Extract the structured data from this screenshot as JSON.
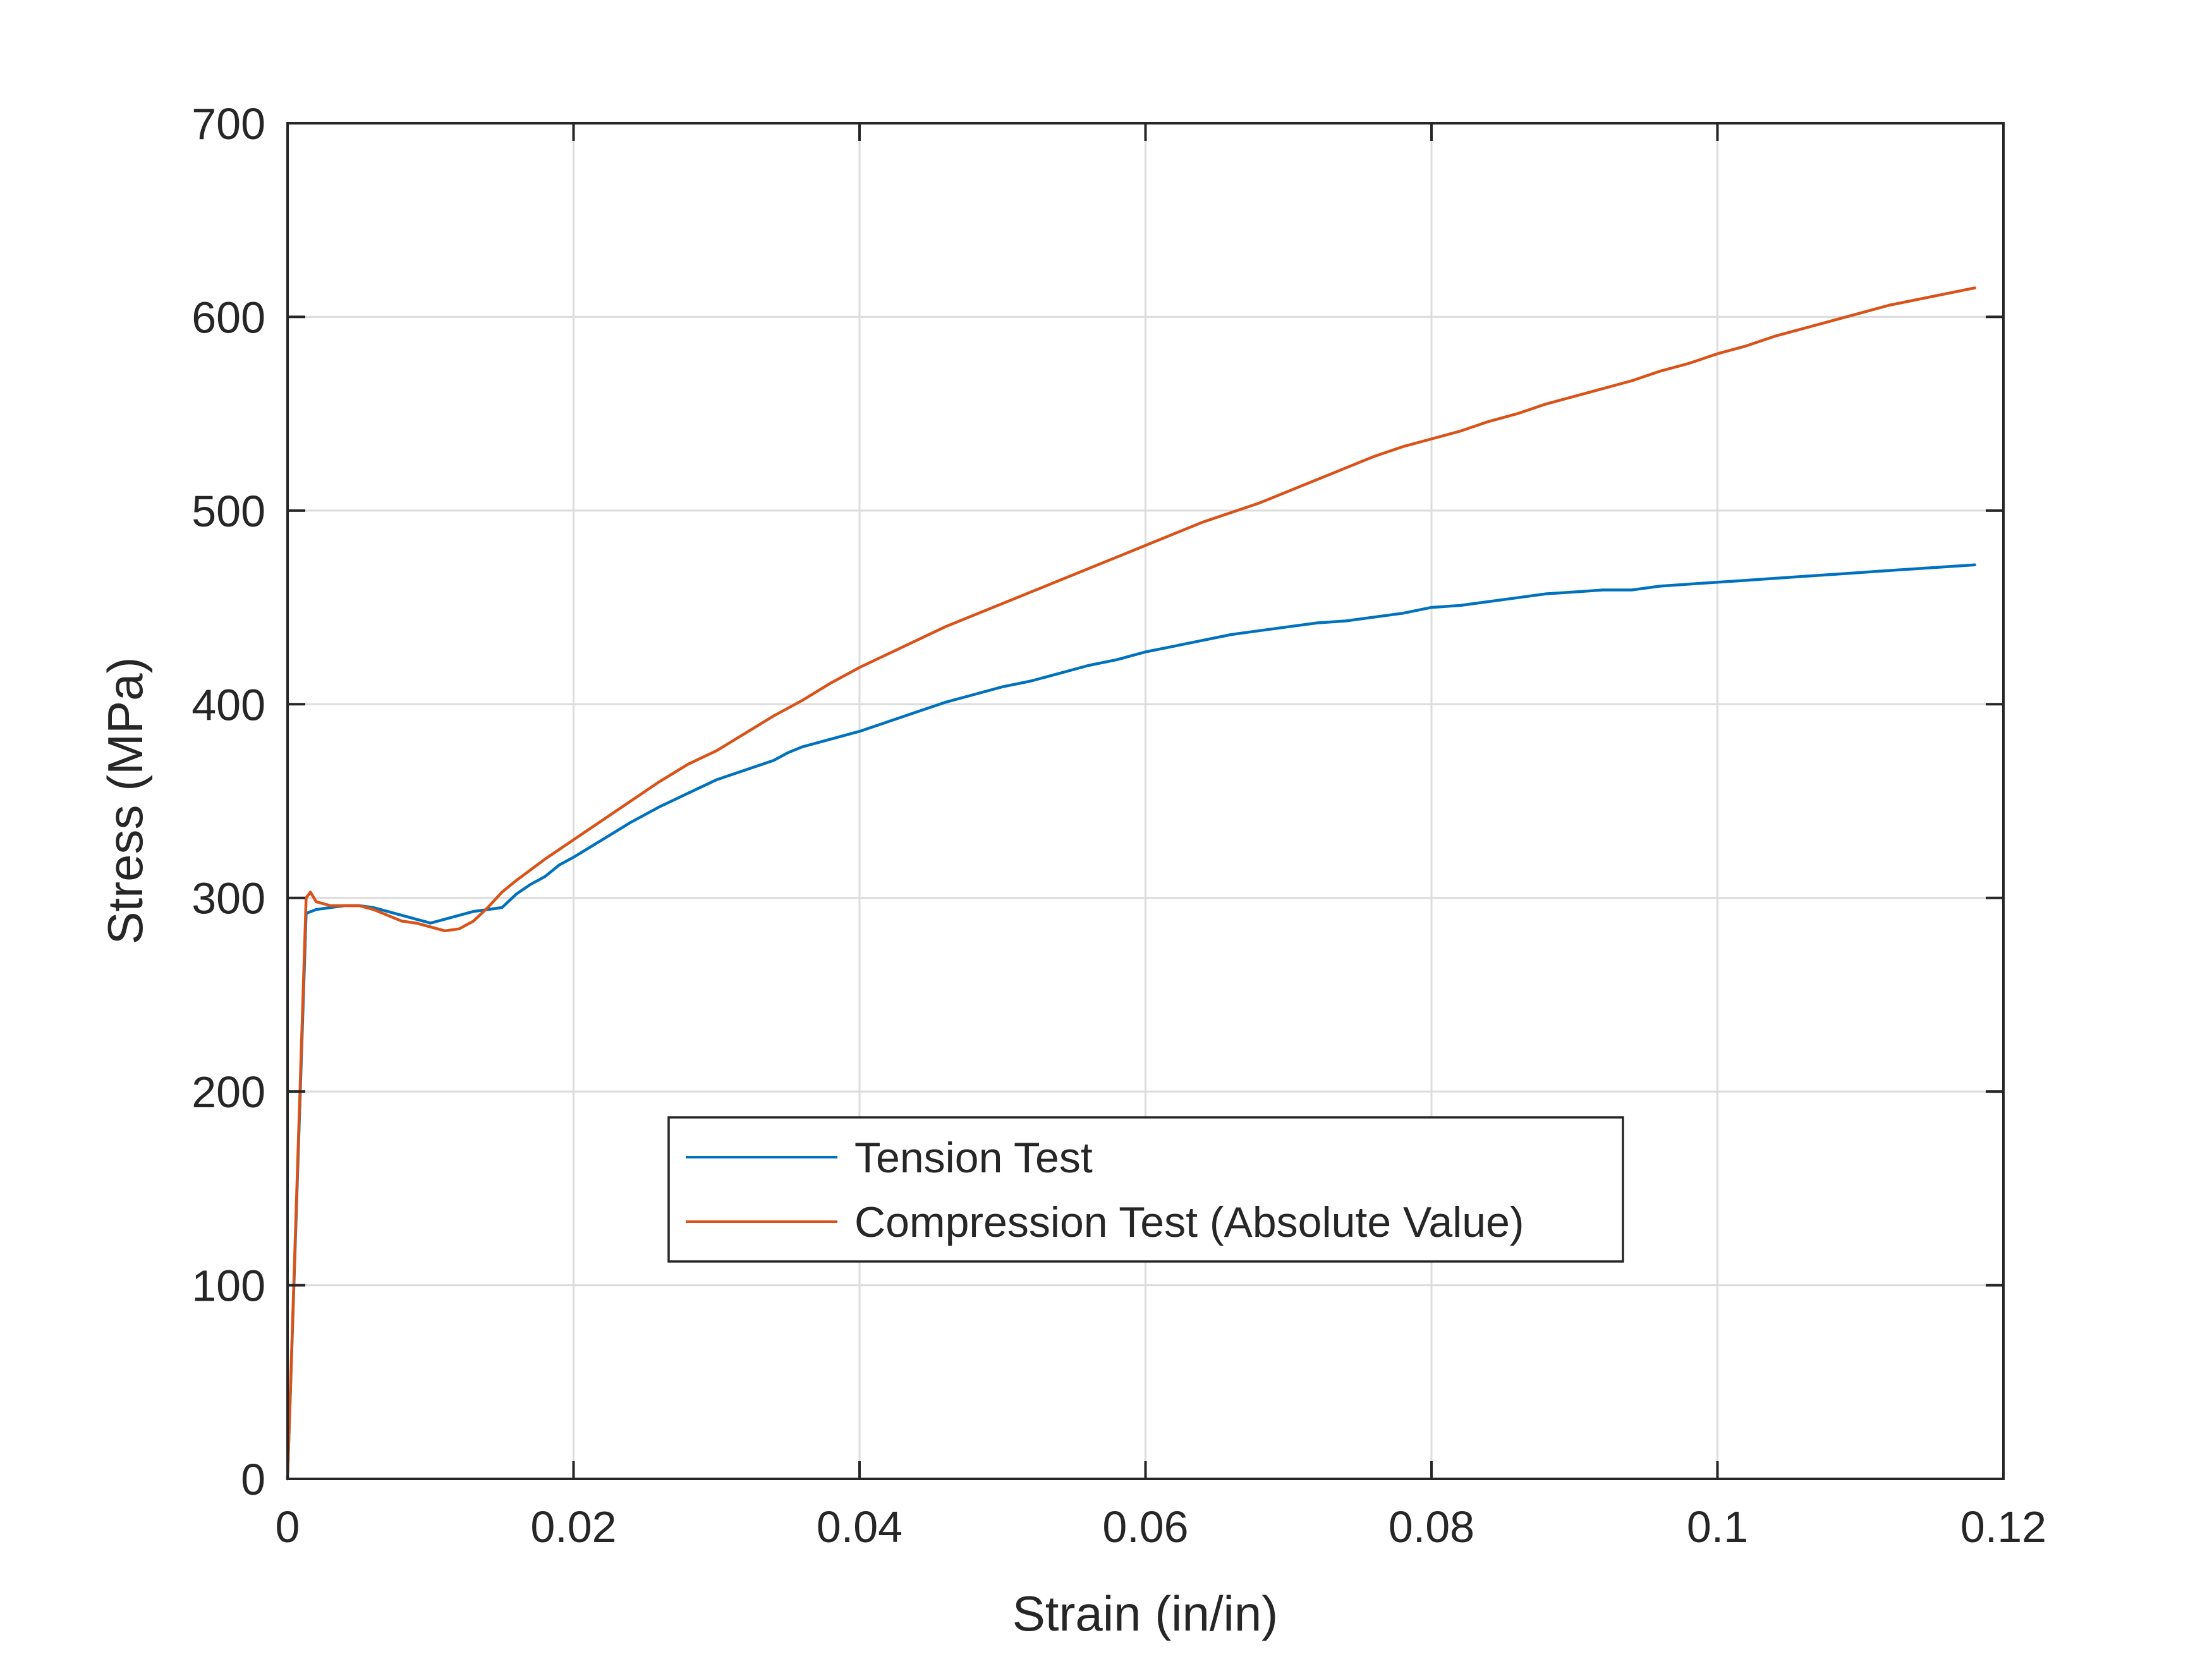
{
  "chart_data": {
    "type": "line",
    "xlabel": "Strain (in/in)",
    "ylabel": "Stress (MPa)",
    "xlim": [
      0,
      0.12
    ],
    "ylim": [
      0,
      700
    ],
    "x_ticks": [
      0,
      0.02,
      0.04,
      0.06,
      0.08,
      0.1,
      0.12
    ],
    "x_tick_labels": [
      "0",
      "0.02",
      "0.04",
      "0.06",
      "0.08",
      "0.1",
      "0.12"
    ],
    "y_ticks": [
      0,
      100,
      200,
      300,
      400,
      500,
      600,
      700
    ],
    "y_tick_labels": [
      "0",
      "100",
      "200",
      "300",
      "400",
      "500",
      "600",
      "700"
    ],
    "grid": true,
    "legend_position": "lower-center",
    "series": [
      {
        "name": "Tension Test",
        "color": "#0072BD",
        "x": [
          0,
          0.0013,
          0.002,
          0.003,
          0.004,
          0.005,
          0.006,
          0.007,
          0.008,
          0.009,
          0.01,
          0.011,
          0.012,
          0.013,
          0.014,
          0.015,
          0.016,
          0.017,
          0.018,
          0.019,
          0.02,
          0.022,
          0.024,
          0.026,
          0.028,
          0.03,
          0.032,
          0.034,
          0.035,
          0.036,
          0.038,
          0.04,
          0.042,
          0.044,
          0.046,
          0.048,
          0.05,
          0.052,
          0.054,
          0.056,
          0.058,
          0.06,
          0.062,
          0.064,
          0.066,
          0.068,
          0.07,
          0.072,
          0.074,
          0.076,
          0.078,
          0.08,
          0.082,
          0.084,
          0.086,
          0.088,
          0.09,
          0.092,
          0.094,
          0.096,
          0.098,
          0.1,
          0.102,
          0.104,
          0.106,
          0.108,
          0.11,
          0.112,
          0.114,
          0.116,
          0.118
        ],
        "y": [
          0,
          292,
          294,
          295,
          296,
          296,
          295,
          293,
          291,
          289,
          287,
          289,
          291,
          293,
          294,
          295,
          302,
          307,
          311,
          317,
          321,
          330,
          339,
          347,
          354,
          361,
          366,
          371,
          375,
          378,
          382,
          386,
          391,
          396,
          401,
          405,
          409,
          412,
          416,
          420,
          423,
          427,
          430,
          433,
          436,
          438,
          440,
          442,
          443,
          445,
          447,
          450,
          451,
          453,
          455,
          457,
          458,
          459,
          459,
          461,
          462,
          463,
          464,
          465,
          466,
          467,
          468,
          469,
          470,
          471,
          472
        ]
      },
      {
        "name": "Compression Test (Absolute Value)",
        "color": "#D95319",
        "x": [
          0,
          0.0013,
          0.0016,
          0.002,
          0.003,
          0.004,
          0.005,
          0.006,
          0.007,
          0.008,
          0.009,
          0.01,
          0.011,
          0.012,
          0.013,
          0.014,
          0.015,
          0.016,
          0.018,
          0.02,
          0.022,
          0.024,
          0.026,
          0.028,
          0.03,
          0.032,
          0.034,
          0.036,
          0.038,
          0.04,
          0.042,
          0.044,
          0.046,
          0.048,
          0.05,
          0.052,
          0.054,
          0.056,
          0.058,
          0.06,
          0.062,
          0.064,
          0.066,
          0.068,
          0.07,
          0.072,
          0.074,
          0.076,
          0.078,
          0.08,
          0.082,
          0.084,
          0.086,
          0.088,
          0.09,
          0.092,
          0.094,
          0.096,
          0.098,
          0.1,
          0.102,
          0.104,
          0.106,
          0.108,
          0.11,
          0.112,
          0.114,
          0.116,
          0.118
        ],
        "y": [
          0,
          300,
          303,
          298,
          296,
          296,
          296,
          294,
          291,
          288,
          287,
          285,
          283,
          284,
          288,
          295,
          303,
          309,
          320,
          330,
          340,
          350,
          360,
          369,
          376,
          385,
          394,
          402,
          411,
          419,
          426,
          433,
          440,
          446,
          452,
          458,
          464,
          470,
          476,
          482,
          488,
          494,
          499,
          504,
          510,
          516,
          522,
          528,
          533,
          537,
          541,
          546,
          550,
          555,
          559,
          563,
          567,
          572,
          576,
          581,
          585,
          590,
          594,
          598,
          602,
          606,
          609,
          612,
          615
        ]
      }
    ]
  }
}
